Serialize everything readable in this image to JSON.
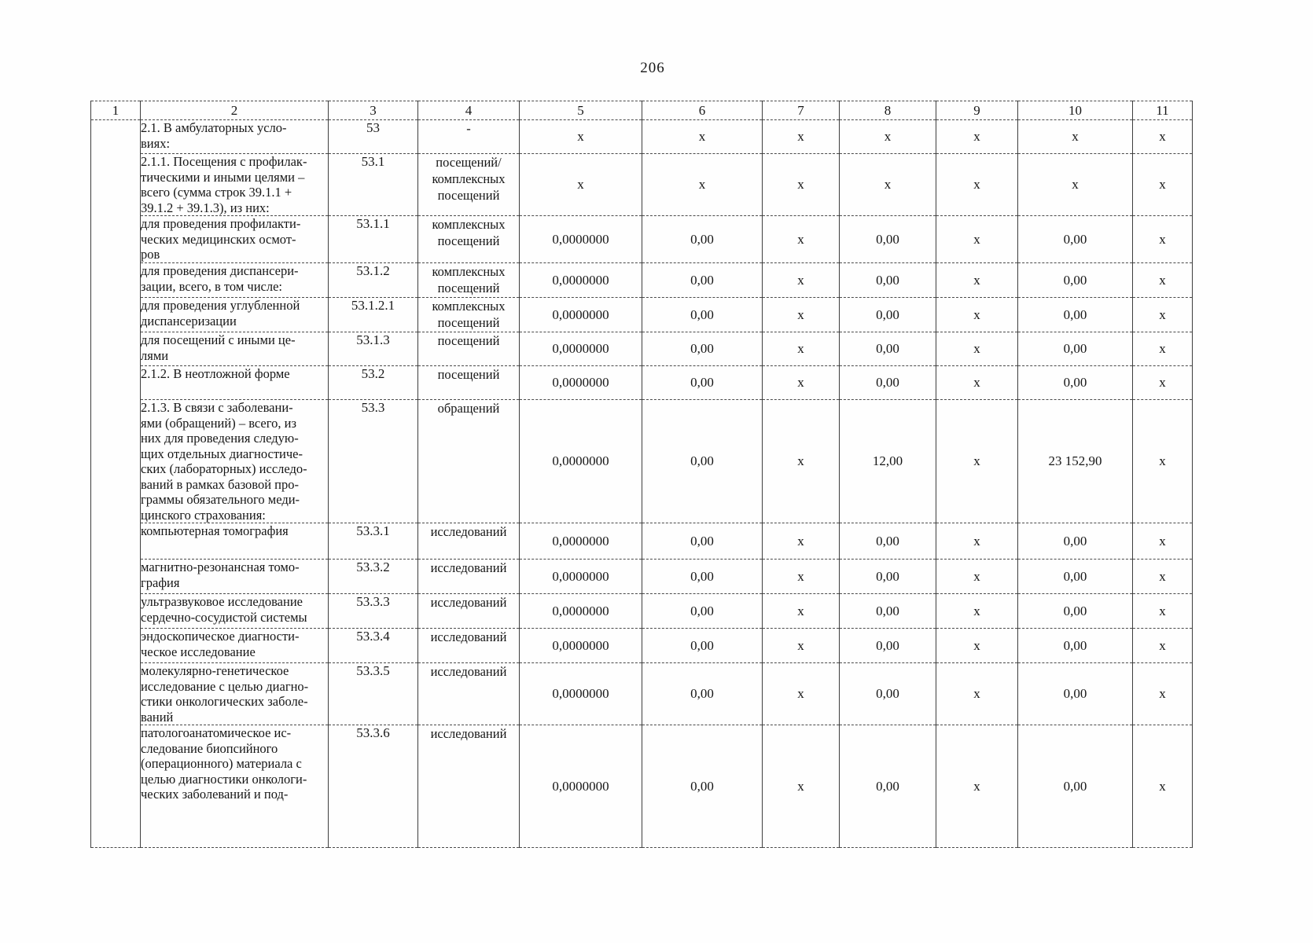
{
  "page": {
    "number": "206"
  },
  "table": {
    "columns": [
      "1",
      "2",
      "3",
      "4",
      "5",
      "6",
      "7",
      "8",
      "9",
      "10",
      "11"
    ],
    "rows": [
      {
        "name": "2.1. В амбулаторных усло-\nвиях:",
        "line": "53",
        "unit": "-",
        "values": [
          "x",
          "x",
          "x",
          "x",
          "x",
          "x",
          "x"
        ]
      },
      {
        "name": "2.1.1. Посещения с профилак-\nтическими и иными целями –\nвсего (сумма строк 39.1.1 +\n39.1.2 + 39.1.3), из них:",
        "line": "53.1",
        "unit": "посещений/\nкомплексных\nпосещений",
        "values": [
          "x",
          "x",
          "x",
          "x",
          "x",
          "x",
          "x"
        ]
      },
      {
        "name": "для проведения профилакти-\nческих медицинских осмот-\nров",
        "line": "53.1.1",
        "unit": "комплексных\nпосещений",
        "values": [
          "0,0000000",
          "0,00",
          "x",
          "0,00",
          "x",
          "0,00",
          "x"
        ]
      },
      {
        "name": "для проведения диспансери-\nзации, всего, в том числе:",
        "line": "53.1.2",
        "unit": "комплексных\nпосещений",
        "values": [
          "0,0000000",
          "0,00",
          "x",
          "0,00",
          "x",
          "0,00",
          "x"
        ]
      },
      {
        "name": "для проведения углубленной\nдиспансеризации",
        "line": "53.1.2.1",
        "unit": "комплексных\nпосещений",
        "values": [
          "0,0000000",
          "0,00",
          "x",
          "0,00",
          "x",
          "0,00",
          "x"
        ]
      },
      {
        "name": "для посещений с иными це-\nлями",
        "line": "53.1.3",
        "unit": "посещений",
        "values": [
          "0,0000000",
          "0,00",
          "x",
          "0,00",
          "x",
          "0,00",
          "x"
        ]
      },
      {
        "name": "2.1.2. В неотложной форме",
        "line": "53.2",
        "unit": "посещений",
        "values": [
          "0,0000000",
          "0,00",
          "x",
          "0,00",
          "x",
          "0,00",
          "x"
        ]
      },
      {
        "name": "2.1.3. В связи с заболевани-\nями (обращений) – всего, из\nних для проведения следую-\nщих отдельных диагностиче-\nских (лабораторных) исследо-\nваний в рамках базовой про-\nграммы обязательного меди-\nцинского страхования:",
        "line": "53.3",
        "unit": "обращений",
        "values": [
          "0,0000000",
          "0,00",
          "x",
          "12,00",
          "x",
          "23 152,90",
          "x"
        ]
      },
      {
        "name": "компьютерная томография",
        "line": "53.3.1",
        "unit": "исследований",
        "values": [
          "0,0000000",
          "0,00",
          "x",
          "0,00",
          "x",
          "0,00",
          "x"
        ]
      },
      {
        "name": "магнитно-резонансная томо-\nграфия",
        "line": "53.3.2",
        "unit": "исследований",
        "values": [
          "0,0000000",
          "0,00",
          "x",
          "0,00",
          "x",
          "0,00",
          "x"
        ]
      },
      {
        "name": "ультразвуковое исследование\nсердечно-сосудистой системы",
        "line": "53.3.3",
        "unit": "исследований",
        "values": [
          "0,0000000",
          "0,00",
          "x",
          "0,00",
          "x",
          "0,00",
          "x"
        ]
      },
      {
        "name": "эндоскопическое диагности-\nческое исследование",
        "line": "53.3.4",
        "unit": "исследований",
        "values": [
          "0,0000000",
          "0,00",
          "x",
          "0,00",
          "x",
          "0,00",
          "x"
        ]
      },
      {
        "name": "молекулярно-генетическое\nисследование с целью диагно-\nстики онкологических заболе-\nваний",
        "line": "53.3.5",
        "unit": "исследований",
        "values": [
          "0,0000000",
          "0,00",
          "x",
          "0,00",
          "x",
          "0,00",
          "x"
        ]
      },
      {
        "name": "патологоанатомическое ис-\nследование биопсийного\n(операционного) материала с\nцелью диагностики онкологи-\nческих заболеваний и под-",
        "line": "53.3.6",
        "unit": "исследований",
        "values": [
          "0,0000000",
          "0,00",
          "x",
          "0,00",
          "x",
          "0,00",
          "x"
        ]
      }
    ]
  }
}
